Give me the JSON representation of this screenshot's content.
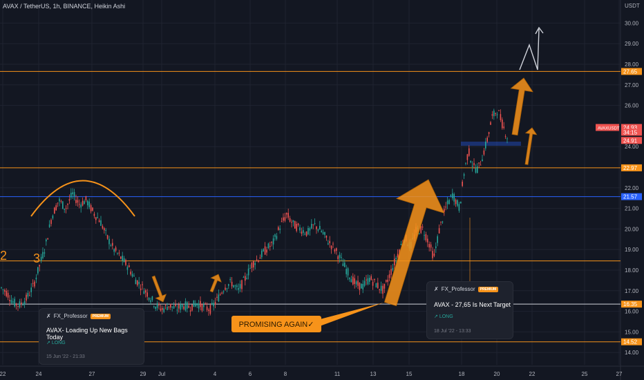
{
  "header": {
    "title": "AVAX / TetherUS, 1h, BINANCE, Heikin Ashi",
    "currency": "USDT"
  },
  "colors": {
    "background": "#131722",
    "up": "#26a69a",
    "down": "#ef5350",
    "orange": "#f7931a",
    "blue": "#2962ff",
    "grid": "#1f2330"
  },
  "chart_data": {
    "type": "candlestick",
    "y_axis": {
      "ticks": [
        "30.00",
        "29.00",
        "28.00",
        "27.00",
        "26.00",
        "24.00",
        "22.00",
        "21.00",
        "20.00",
        "19.00",
        "18.00",
        "17.00",
        "16.00",
        "15.00",
        "14.00"
      ],
      "range": [
        13.8,
        31.0
      ]
    },
    "x_axis": {
      "ticks": [
        "22",
        "24",
        "27",
        "29",
        "Jul",
        "4",
        "6",
        "8",
        "11",
        "13",
        "15",
        "18",
        "20",
        "22",
        "25",
        "27"
      ]
    },
    "price_tags": [
      {
        "label": "27.65",
        "value": 27.65,
        "color": "#f7931a"
      },
      {
        "label": "24.93",
        "value": 24.93,
        "color": "#ef5350"
      },
      {
        "label": "34:15",
        "value": 24.7,
        "color": "#ef5350"
      },
      {
        "label": "24.91",
        "value": 24.3,
        "color": "#ef5350"
      },
      {
        "label": "AVAXUSDT",
        "value": 24.93,
        "color": "#ef5350"
      },
      {
        "label": "22.97",
        "value": 22.97,
        "color": "#f7931a"
      },
      {
        "label": "21.57",
        "value": 21.57,
        "color": "#2962ff"
      },
      {
        "label": "16.35",
        "value": 16.35,
        "color": "#f7931a"
      },
      {
        "label": "14.52",
        "value": 14.52,
        "color": "#f7931a"
      }
    ],
    "horizontal_lines": [
      {
        "value": 27.65,
        "color": "#f7931a"
      },
      {
        "value": 22.97,
        "color": "#f7931a"
      },
      {
        "value": 21.57,
        "color": "#2962ff"
      },
      {
        "value": 18.45,
        "color": "#f7931a"
      },
      {
        "value": 16.35,
        "color": "#d1d4dc"
      },
      {
        "value": 14.52,
        "color": "#f7931a"
      }
    ],
    "price_path": [
      [
        0,
        17.2
      ],
      [
        10,
        16.9
      ],
      [
        20,
        16.4
      ],
      [
        28,
        16.3
      ],
      [
        38,
        16.6
      ],
      [
        48,
        17.2
      ],
      [
        58,
        18.3
      ],
      [
        66,
        19.2
      ],
      [
        75,
        20.6
      ],
      [
        85,
        21.4
      ],
      [
        95,
        21.0
      ],
      [
        105,
        21.7
      ],
      [
        115,
        21.2
      ],
      [
        125,
        21.4
      ],
      [
        135,
        20.8
      ],
      [
        145,
        20.4
      ],
      [
        155,
        19.6
      ],
      [
        165,
        19.0
      ],
      [
        175,
        18.6
      ],
      [
        185,
        18.2
      ],
      [
        195,
        17.6
      ],
      [
        205,
        17.2
      ],
      [
        215,
        16.8
      ],
      [
        225,
        16.3
      ],
      [
        235,
        16.1
      ],
      [
        245,
        16.3
      ],
      [
        255,
        16.1
      ],
      [
        265,
        16.3
      ],
      [
        275,
        16.2
      ],
      [
        285,
        16.4
      ],
      [
        295,
        16.2
      ],
      [
        305,
        16.1
      ],
      [
        315,
        16.6
      ],
      [
        325,
        17.2
      ],
      [
        335,
        17.4
      ],
      [
        345,
        17.0
      ],
      [
        355,
        17.6
      ],
      [
        365,
        18.3
      ],
      [
        375,
        18.6
      ],
      [
        385,
        19.0
      ],
      [
        395,
        19.3
      ],
      [
        405,
        20.1
      ],
      [
        415,
        20.7
      ],
      [
        425,
        20.2
      ],
      [
        435,
        20.0
      ],
      [
        445,
        19.8
      ],
      [
        455,
        20.2
      ],
      [
        465,
        19.9
      ],
      [
        475,
        19.4
      ],
      [
        485,
        19.0
      ],
      [
        495,
        18.4
      ],
      [
        505,
        17.8
      ],
      [
        515,
        17.3
      ],
      [
        525,
        17.2
      ],
      [
        535,
        17.6
      ],
      [
        545,
        17.3
      ],
      [
        555,
        17.0
      ],
      [
        562,
        17.6
      ],
      [
        570,
        18.3
      ],
      [
        578,
        19.0
      ],
      [
        586,
        19.6
      ],
      [
        594,
        19.1
      ],
      [
        602,
        19.9
      ],
      [
        612,
        20.0
      ],
      [
        620,
        19.4
      ],
      [
        628,
        18.6
      ],
      [
        636,
        20.0
      ],
      [
        645,
        21.0
      ],
      [
        655,
        21.7
      ],
      [
        665,
        21.0
      ],
      [
        672,
        22.8
      ],
      [
        678,
        23.8
      ],
      [
        685,
        23.0
      ],
      [
        692,
        22.9
      ],
      [
        698,
        23.5
      ],
      [
        705,
        24.3
      ],
      [
        712,
        25.4
      ],
      [
        720,
        25.8
      ],
      [
        728,
        25.0
      ],
      [
        734,
        24.5
      ]
    ],
    "annotations": [
      {
        "text": "2",
        "kind": "label"
      },
      {
        "text": "3",
        "kind": "label"
      },
      {
        "text": "PROMISING AGAIN✓",
        "kind": "callout"
      }
    ]
  },
  "ideas": [
    {
      "author": "FX_Professor",
      "badge": "PREMIUM",
      "title": "AVAX- Loading Up New Bags Today",
      "direction": "LONG",
      "date": "15 Jun '22 - 21:33"
    },
    {
      "author": "FX_Professor",
      "badge": "PREMIUM",
      "title": "AVAX - 27,65 Is Next Target",
      "direction": "LONG",
      "date": "18 Jul '22 - 13:33"
    }
  ],
  "callout": {
    "text": "PROMISING AGAIN✓"
  }
}
